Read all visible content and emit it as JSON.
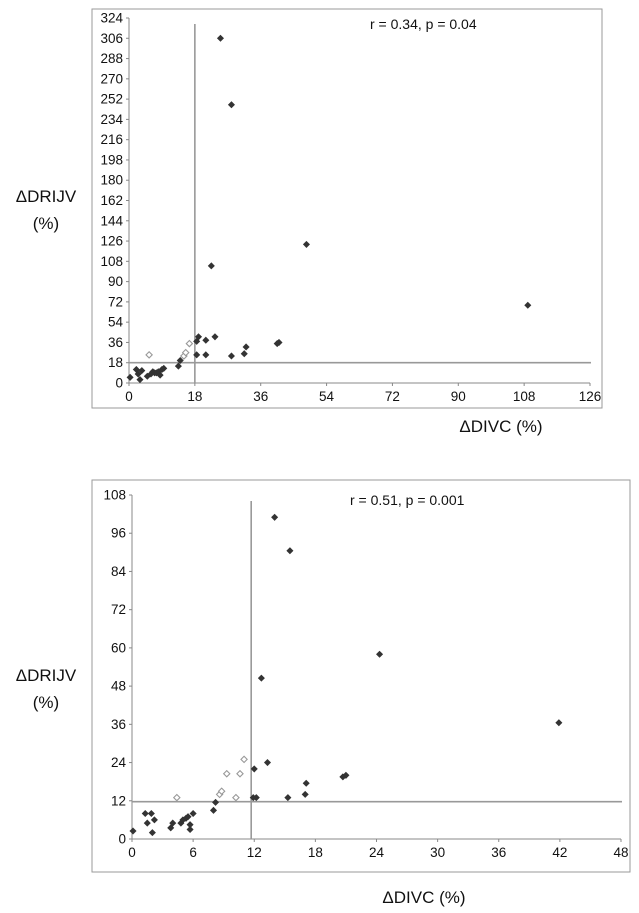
{
  "chart_data": [
    {
      "type": "scatter",
      "annotation": "r = 0.34, p = 0.04",
      "xlabel": "ΔDIVC (%)",
      "ylabel_line1": "ΔDRIJV",
      "ylabel_line2": "(%)",
      "xlim": [
        0,
        126
      ],
      "ylim": [
        0,
        324
      ],
      "xticks": [
        "0",
        "18",
        "36",
        "54",
        "72",
        "90",
        "108",
        "126"
      ],
      "yticks": [
        "0",
        "18",
        "36",
        "54",
        "72",
        "90",
        "108",
        "126",
        "144",
        "162",
        "180",
        "198",
        "216",
        "234",
        "252",
        "270",
        "288",
        "306",
        "324"
      ],
      "cutoff_x": 18,
      "cutoff_y": 18,
      "series": [
        {
          "marker": "filled-diamond",
          "color": "#333333",
          "points": [
            [
              0.3,
              5
            ],
            [
              2,
              12
            ],
            [
              2.5,
              8
            ],
            [
              3,
              3
            ],
            [
              3.5,
              11
            ],
            [
              5,
              6
            ],
            [
              6,
              8
            ],
            [
              6.5,
              10
            ],
            [
              7,
              9
            ],
            [
              7.5,
              9
            ],
            [
              8,
              10
            ],
            [
              8.5,
              7
            ],
            [
              9,
              12
            ],
            [
              9.5,
              13
            ],
            [
              13.5,
              15
            ],
            [
              14,
              20
            ],
            [
              18.5,
              25
            ],
            [
              18.5,
              37
            ],
            [
              19,
              41
            ],
            [
              21,
              25
            ],
            [
              21,
              38
            ],
            [
              22.5,
              104
            ],
            [
              23.5,
              41
            ],
            [
              25,
              306
            ],
            [
              28,
              247
            ],
            [
              28,
              24
            ],
            [
              31.5,
              26
            ],
            [
              32,
              32
            ],
            [
              40.5,
              35
            ],
            [
              41,
              36
            ],
            [
              48.5,
              123
            ],
            [
              109,
              69
            ]
          ]
        },
        {
          "marker": "open-diamond",
          "color": "#999999",
          "points": [
            [
              5.5,
              25
            ],
            [
              15,
              24
            ],
            [
              15.5,
              27
            ],
            [
              16.5,
              35
            ]
          ]
        }
      ]
    },
    {
      "type": "scatter",
      "annotation": "r = 0.51, p = 0.001",
      "xlabel": "ΔDIVC (%)",
      "ylabel_line1": "ΔDRIJV",
      "ylabel_line2": "(%)",
      "xlim": [
        0,
        48
      ],
      "ylim": [
        0,
        108
      ],
      "xticks": [
        "0",
        "6",
        "12",
        "18",
        "24",
        "30",
        "36",
        "42",
        "48"
      ],
      "yticks": [
        "0",
        "12",
        "24",
        "36",
        "48",
        "60",
        "72",
        "84",
        "96",
        "108"
      ],
      "cutoff_x": 11.7,
      "cutoff_y": 11.7,
      "series": [
        {
          "marker": "filled-diamond",
          "color": "#333333",
          "points": [
            [
              0.1,
              2.5
            ],
            [
              1.3,
              8
            ],
            [
              1.5,
              5
            ],
            [
              1.9,
              8
            ],
            [
              2.0,
              2
            ],
            [
              2.2,
              6
            ],
            [
              3.8,
              3.5
            ],
            [
              4.0,
              5
            ],
            [
              4.8,
              5
            ],
            [
              5.0,
              6
            ],
            [
              5.3,
              6.5
            ],
            [
              5.5,
              7
            ],
            [
              5.7,
              4.5
            ],
            [
              5.7,
              3
            ],
            [
              6.0,
              8
            ],
            [
              8.0,
              9
            ],
            [
              8.2,
              11.5
            ],
            [
              11.9,
              13
            ],
            [
              12.0,
              22
            ],
            [
              12.2,
              13
            ],
            [
              12.7,
              50.5
            ],
            [
              13.3,
              24
            ],
            [
              14.0,
              101
            ],
            [
              15.3,
              13
            ],
            [
              15.5,
              90.5
            ],
            [
              17.0,
              14
            ],
            [
              17.1,
              17.5
            ],
            [
              20.7,
              19.5
            ],
            [
              21.0,
              20
            ],
            [
              24.3,
              58
            ],
            [
              41.9,
              36.5
            ]
          ]
        },
        {
          "marker": "open-diamond",
          "color": "#999999",
          "points": [
            [
              4.4,
              13
            ],
            [
              8.6,
              14
            ],
            [
              8.8,
              15
            ],
            [
              9.3,
              20.5
            ],
            [
              10.2,
              13
            ],
            [
              10.6,
              20.5
            ],
            [
              11.0,
              25
            ]
          ]
        }
      ]
    }
  ]
}
